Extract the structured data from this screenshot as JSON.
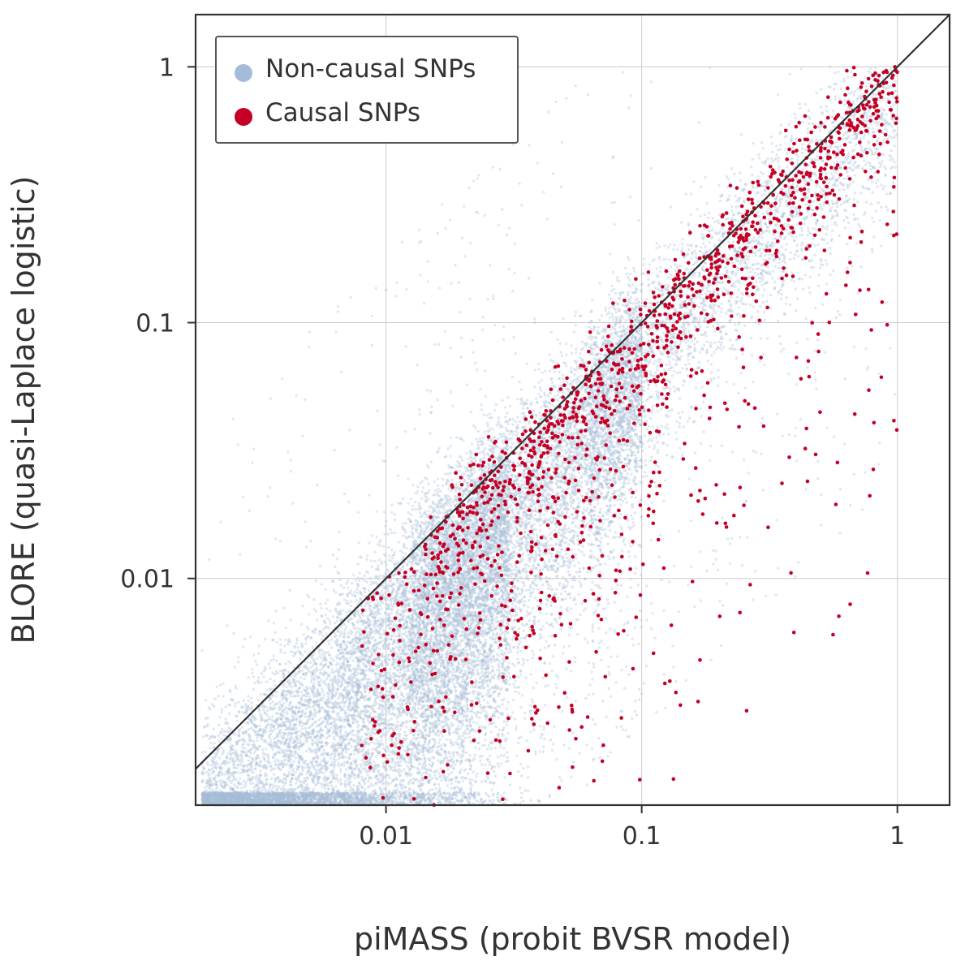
{
  "chart_data": {
    "type": "scatter",
    "title": "",
    "xlabel": "piMASS (probit BVSR model)",
    "ylabel": "BLORE (quasi-Laplace logistic)",
    "xscale": "log",
    "yscale": "log",
    "xlim": [
      0.0018,
      1.6
    ],
    "ylim": [
      0.0013,
      1.6
    ],
    "xticks": [
      {
        "value": 0.01,
        "label": "0.01"
      },
      {
        "value": 0.1,
        "label": "0.1"
      },
      {
        "value": 1,
        "label": "1"
      }
    ],
    "yticks": [
      {
        "value": 0.01,
        "label": "0.01"
      },
      {
        "value": 0.1,
        "label": "0.1"
      },
      {
        "value": 1,
        "label": "1"
      }
    ],
    "grid": true,
    "legend_position": "top-left",
    "reference_line": {
      "type": "identity",
      "color": "#333333"
    },
    "series": [
      {
        "name": "Non-causal SNPs",
        "color": "#a5bcd8",
        "point_count_estimate": 60000,
        "distribution": "dense cloud concentrated below 0.03 on both axes, spreading along and mostly below the diagonal y = x, thinning toward (1, 1)",
        "sample_points": [
          [
            0.003,
            0.002
          ],
          [
            0.005,
            0.004
          ],
          [
            0.008,
            0.003
          ],
          [
            0.01,
            0.006
          ],
          [
            0.015,
            0.01
          ],
          [
            0.02,
            0.015
          ],
          [
            0.03,
            0.02
          ],
          [
            0.05,
            0.04
          ],
          [
            0.08,
            0.06
          ],
          [
            0.1,
            0.09
          ],
          [
            0.2,
            0.15
          ],
          [
            0.3,
            0.25
          ],
          [
            0.5,
            0.45
          ],
          [
            0.015,
            0.3
          ],
          [
            0.02,
            0.002
          ]
        ]
      },
      {
        "name": "Causal SNPs",
        "color": "#c40025",
        "point_count_estimate": 1400,
        "distribution": "concentrated along the diagonal from about 0.02 to 1, with a scatter below the diagonal at lower BLORE values",
        "sample_points": [
          [
            0.012,
            0.003
          ],
          [
            0.02,
            0.02
          ],
          [
            0.03,
            0.025
          ],
          [
            0.05,
            0.045
          ],
          [
            0.07,
            0.07
          ],
          [
            0.1,
            0.1
          ],
          [
            0.15,
            0.16
          ],
          [
            0.3,
            0.3
          ],
          [
            0.6,
            0.65
          ],
          [
            0.95,
            0.97
          ],
          [
            0.33,
            1.0
          ],
          [
            0.5,
            0.03
          ],
          [
            0.2,
            0.02
          ],
          [
            0.08,
            0.008
          ],
          [
            0.04,
            0.005
          ]
        ]
      }
    ]
  }
}
